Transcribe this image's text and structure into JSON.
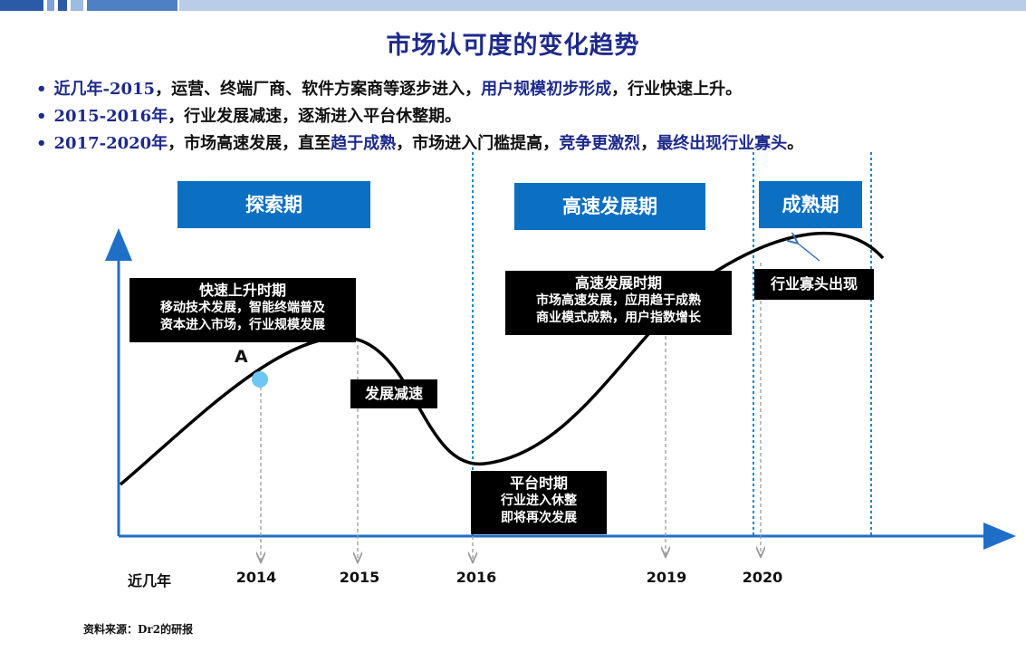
{
  "title": "市场认可度的变化趋势",
  "bullets": [
    {
      "segments": [
        {
          "text": "近几年-2015",
          "blue": true
        },
        {
          "text": "，运营、终端厂商、软件方案商等逐步进入，",
          "blue": false
        },
        {
          "text": "用户规模初步形成",
          "blue": true
        },
        {
          "text": "，行业快速上升。",
          "blue": false
        }
      ]
    },
    {
      "segments": [
        {
          "text": "2015-2016年",
          "blue": true
        },
        {
          "text": "，行业发展减速，逐渐进入平台休整期。",
          "blue": false
        }
      ]
    },
    {
      "segments": [
        {
          "text": "2017-2020年",
          "blue": true
        },
        {
          "text": "，市场高速发展，直至",
          "blue": false
        },
        {
          "text": "趋于成熟",
          "blue": true
        },
        {
          "text": "，市场进入门槛提高，",
          "blue": false
        },
        {
          "text": "竞争更激烈",
          "blue": true
        },
        {
          "text": "，",
          "blue": false
        },
        {
          "text": "最终出现行业寡头",
          "blue": true
        },
        {
          "text": "。",
          "blue": false
        }
      ]
    }
  ],
  "stages": {
    "explore": "探索期",
    "rapid": "高速发展期",
    "mature": "成熟期"
  },
  "notes": {
    "fast_rise": {
      "heading": "快速上升时期",
      "line1": "移动技术发展，智能终端普及",
      "line2": "资本进入市场，行业规模发展"
    },
    "slowdown": "发展减速",
    "platform": {
      "heading": "平台时期",
      "line1": "行业进入休整",
      "line2": "即将再次发展"
    },
    "rapid_period": {
      "heading": "高速发展时期",
      "line1": "市场高速发展，应用趋于成熟",
      "line2": "商业模式成熟，用户指数增长"
    },
    "oligopoly": "行业寡头出现"
  },
  "point_label": "A",
  "x_axis": {
    "origin_label": "近几年",
    "years": [
      "2014",
      "2015",
      "2016",
      "2019",
      "2020"
    ]
  },
  "source": "资料来源：Dr2的研报",
  "colors": {
    "title": "#1e2a8c",
    "stage_box": "#0b6fc2",
    "axis": "#1f6fc9",
    "point": "#6ec6f5",
    "divider": "#1a86c8"
  }
}
